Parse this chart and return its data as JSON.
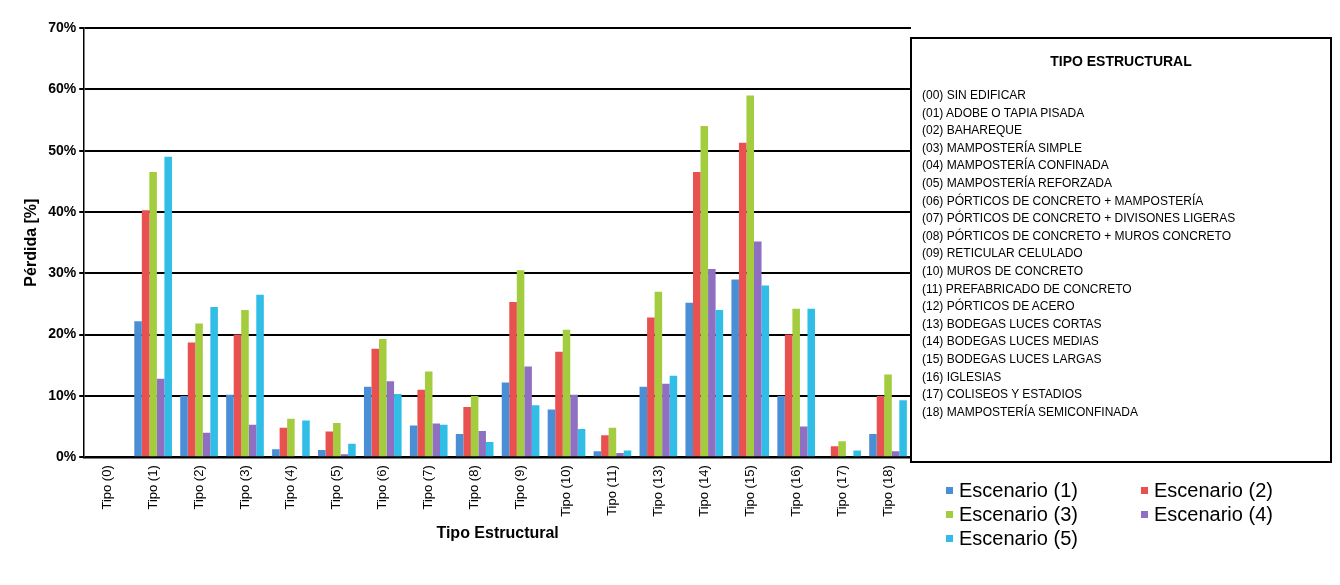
{
  "chart_data": {
    "type": "bar",
    "xlabel": "Tipo Estructural",
    "ylabel": "Pérdida [%]",
    "categories": [
      "Tipo (0)",
      "Tipo (1)",
      "Tipo (2)",
      "Tipo (3)",
      "Tipo (4)",
      "Tipo (5)",
      "Tipo (6)",
      "Tipo (7)",
      "Tipo (8)",
      "Tipo (9)",
      "Tipo (10)",
      "Tipo (11)",
      "Tipo (13)",
      "Tipo (14)",
      "Tipo (15)",
      "Tipo (16)",
      "Tipo (17)",
      "Tipo (18)"
    ],
    "series": [
      {
        "name": "Escenario (1)",
        "color": "#4a8fd6",
        "values": [
          0,
          22.2,
          10,
          10.2,
          1.3,
          1.2,
          11.5,
          5.2,
          3.8,
          12.2,
          7.8,
          1.0,
          11.5,
          25.2,
          29,
          10,
          null,
          3.8
        ]
      },
      {
        "name": "Escenario (2)",
        "color": "#e8514f",
        "values": [
          0,
          40.3,
          18.7,
          20,
          4.8,
          4.2,
          17.7,
          11,
          8.2,
          25.3,
          17.2,
          3.6,
          22.8,
          46.5,
          51.3,
          20,
          1.8,
          10
        ]
      },
      {
        "name": "Escenario (3)",
        "color": "#a3cc3f",
        "values": [
          0,
          46.5,
          21.8,
          24,
          6.3,
          5.6,
          19.3,
          14,
          10,
          30.5,
          20.8,
          4.8,
          27,
          54,
          59,
          24.2,
          2.6,
          13.5
        ]
      },
      {
        "name": "Escenario (4)",
        "color": "#8e6fc1",
        "values": [
          0,
          12.8,
          4,
          5.3,
          null,
          0.5,
          12.4,
          5.5,
          4.3,
          14.8,
          10.2,
          0.7,
          12,
          30.7,
          35.2,
          5,
          null,
          1
        ]
      },
      {
        "name": "Escenario (5)",
        "color": "#30bde6",
        "values": [
          0,
          49,
          24.5,
          26.5,
          6,
          2.2,
          10.3,
          5.3,
          2.5,
          8.5,
          4.6,
          1.1,
          13.3,
          24,
          28,
          24.2,
          1.1,
          9.3
        ]
      }
    ],
    "ylim": [
      0,
      70
    ],
    "yticks": [
      {
        "value": 0,
        "label": "0%"
      },
      {
        "value": 10,
        "label": "10%"
      },
      {
        "value": 20,
        "label": "20%"
      },
      {
        "value": 30,
        "label": "30%"
      },
      {
        "value": 40,
        "label": "40%"
      },
      {
        "value": 50,
        "label": "50%"
      },
      {
        "value": 60,
        "label": "60%"
      },
      {
        "value": 70,
        "label": "70%"
      }
    ],
    "grid": "y",
    "legend": "bottom right",
    "annotations": [
      "TIPO ESTRUCTURAL",
      "(00) SIN EDIFICAR",
      "(01) ADOBE O TAPIA PISADA",
      "(02) BAHAREQUE",
      "(03) MAMPOSTERÍA SIMPLE",
      "(04) MAMPOSTERÍA CONFINADA",
      "(05) MAMPOSTERÍA REFORZADA",
      "(06) PÓRTICOS DE CONCRETO + MAMPOSTERÍA",
      "(07) PÓRTICOS DE CONCRETO + DIVISONES LIGERAS",
      "(08) PÓRTICOS DE CONCRETO + MUROS CONCRETO",
      "(09) RETICULAR CELULADO",
      "(10) MUROS DE CONCRETO",
      "(11) PREFABRICADO DE CONCRETO",
      "(12) PÓRTICOS DE ACERO",
      "(13) BODEGAS LUCES CORTAS",
      "(14) BODEGAS LUCES MEDIAS",
      "(15) BODEGAS LUCES LARGAS",
      "(16) IGLESIAS",
      "(17) COLISEOS Y ESTADIOS",
      "(18) MAMPOSTERÍA SEMICONFINADA"
    ]
  }
}
